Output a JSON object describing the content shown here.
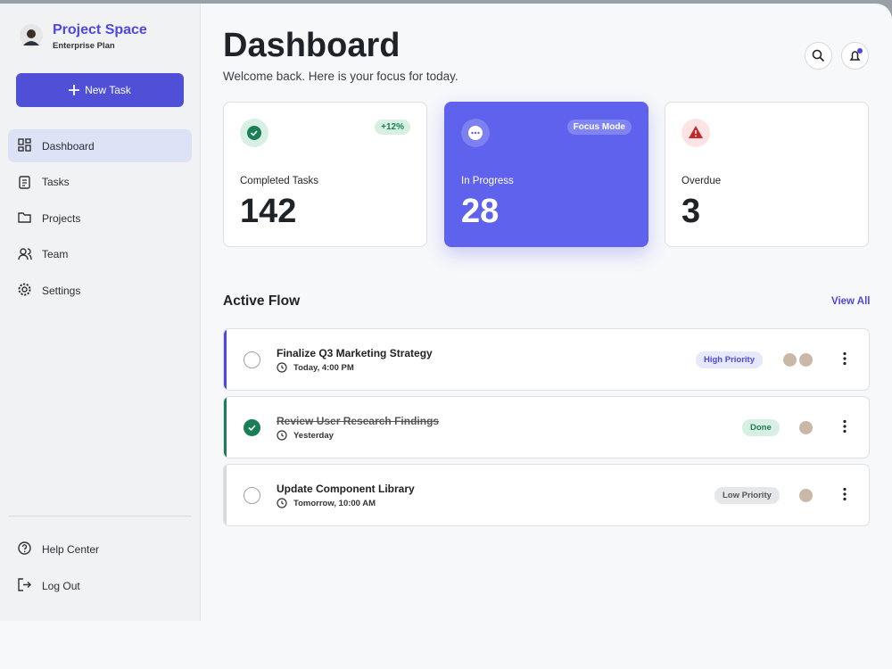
{
  "sidebar": {
    "brand": {
      "name": "Project Space",
      "plan": "Enterprise Plan"
    },
    "new_task": "New Task",
    "nav": [
      "Dashboard",
      "Tasks",
      "Projects",
      "Team",
      "Settings"
    ],
    "footer": [
      "Help Center",
      "Log Out"
    ]
  },
  "header": {
    "title": "Dashboard",
    "subtitle": "Welcome back. Here is your focus for today."
  },
  "stats": [
    {
      "label": "Completed Tasks",
      "value": "142",
      "badge": "+12%"
    },
    {
      "label": "In Progress",
      "value": "28",
      "badge": "Focus Mode"
    },
    {
      "label": "Overdue",
      "value": "3"
    }
  ],
  "flow": {
    "title": "Active Flow",
    "view_all": "View All",
    "tasks": [
      {
        "title": "Finalize Q3 Marketing Strategy",
        "due": "Today, 4:00 PM",
        "tag": "High Priority"
      },
      {
        "title": "Review User Research Findings",
        "due": "Yesterday",
        "tag": "Done"
      },
      {
        "title": "Update Component Library",
        "due": "Tomorrow, 10:00 AM",
        "tag": "Low Priority"
      }
    ]
  }
}
